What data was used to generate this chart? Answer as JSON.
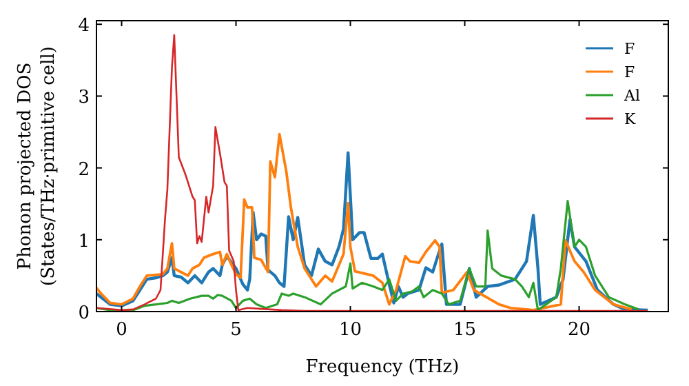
{
  "chart_data": {
    "type": "line",
    "xlabel": "Frequency (THz)",
    "ylabel": "Phonon projected DOS\n(States/THz·primitive cell)",
    "xlim": [
      -1.1,
      23.9
    ],
    "ylim": [
      0,
      4.05
    ],
    "xticks": [
      0,
      5,
      10,
      15,
      20
    ],
    "yticks": [
      0,
      1,
      2,
      3,
      4
    ],
    "legend": "top right",
    "grid": false,
    "series": [
      {
        "name": "F",
        "color": "#1f77b4",
        "x": [
          -1.1,
          -0.9,
          -0.5,
          0,
          0.5,
          0.8,
          1.1,
          1.5,
          1.8,
          2.0,
          2.2,
          2.3,
          2.6,
          2.9,
          3.2,
          3.5,
          3.8,
          4.0,
          4.3,
          4.4,
          4.6,
          5.0,
          5.3,
          5.5,
          5.6,
          5.75,
          5.9,
          6.1,
          6.3,
          6.4,
          6.7,
          6.9,
          7.1,
          7.3,
          7.5,
          7.7,
          8.0,
          8.3,
          8.6,
          8.9,
          9.2,
          9.5,
          9.7,
          9.9,
          10.1,
          10.4,
          10.6,
          10.9,
          11.2,
          11.4,
          11.7,
          11.9,
          12.1,
          12.3,
          12.5,
          13.0,
          13.3,
          13.6,
          13.8,
          14.0,
          14.2,
          14.8,
          15.2,
          15.5,
          16.0,
          16.5,
          17.2,
          17.7,
          18.0,
          18.2,
          18.3,
          19.0,
          19.3,
          19.6,
          19.8,
          20.3,
          20.8,
          21.5,
          22.0,
          23.0
        ],
        "values": [
          0.25,
          0.2,
          0.1,
          0.08,
          0.15,
          0.3,
          0.45,
          0.47,
          0.5,
          0.55,
          0.75,
          0.5,
          0.48,
          0.4,
          0.5,
          0.4,
          0.55,
          0.6,
          0.5,
          0.65,
          0.77,
          0.6,
          0.38,
          0.3,
          0.45,
          1.38,
          1.0,
          1.08,
          1.05,
          0.58,
          0.5,
          0.4,
          0.35,
          1.32,
          1.0,
          1.31,
          0.65,
          0.5,
          0.87,
          0.7,
          0.65,
          0.9,
          1.15,
          2.21,
          1.0,
          1.1,
          1.1,
          0.74,
          0.74,
          0.8,
          0.38,
          0.12,
          0.35,
          0.2,
          0.25,
          0.3,
          0.61,
          0.55,
          0.75,
          0.94,
          0.1,
          0.1,
          0.6,
          0.2,
          0.35,
          0.37,
          0.45,
          0.7,
          1.34,
          0.6,
          0.1,
          0.2,
          0.45,
          1.28,
          0.9,
          0.7,
          0.3,
          0.1,
          0.03,
          0.02
        ]
      },
      {
        "name": "F",
        "color": "#ff7f0e",
        "x": [
          -1.1,
          -0.9,
          -0.5,
          0,
          0.5,
          0.8,
          1.1,
          1.8,
          2.0,
          2.2,
          2.3,
          2.6,
          2.9,
          3.1,
          3.4,
          3.6,
          4.0,
          4.3,
          4.4,
          4.6,
          4.8,
          5.0,
          5.2,
          5.36,
          5.5,
          5.7,
          5.8,
          6.1,
          6.4,
          6.5,
          6.7,
          6.9,
          7.2,
          7.4,
          7.7,
          8.0,
          8.5,
          8.9,
          9.2,
          9.7,
          9.9,
          10.0,
          10.2,
          11.0,
          11.4,
          11.7,
          12.0,
          12.4,
          12.6,
          13.0,
          13.3,
          13.7,
          13.9,
          14.0,
          14.5,
          15.1,
          15.4,
          16.5,
          17.0,
          18.0,
          19.2,
          19.4,
          19.8,
          20.2,
          20.7,
          21.5,
          22.3
        ],
        "values": [
          0.33,
          0.25,
          0.12,
          0.1,
          0.18,
          0.35,
          0.5,
          0.52,
          0.6,
          0.95,
          0.6,
          0.55,
          0.5,
          0.6,
          0.65,
          0.75,
          0.8,
          0.83,
          0.65,
          0.8,
          0.65,
          0.52,
          0.47,
          1.56,
          1.45,
          1.45,
          0.75,
          0.72,
          0.55,
          2.09,
          1.87,
          2.47,
          1.95,
          1.45,
          0.9,
          0.6,
          0.35,
          0.5,
          0.42,
          0.8,
          1.51,
          0.9,
          0.56,
          0.5,
          0.4,
          0.1,
          0.3,
          0.77,
          0.7,
          0.68,
          0.83,
          0.99,
          0.9,
          0.26,
          0.3,
          0.55,
          0.3,
          0.1,
          0.05,
          0.02,
          0.1,
          0.99,
          0.7,
          0.55,
          0.3,
          0.1,
          0.03
        ]
      },
      {
        "name": "Al",
        "color": "#2ca02c",
        "x": [
          -1.1,
          -0.5,
          0,
          0.5,
          1.0,
          1.5,
          2.0,
          2.2,
          2.5,
          3.0,
          3.5,
          3.8,
          4.0,
          4.2,
          4.4,
          4.8,
          5.0,
          5.3,
          5.6,
          5.9,
          6.3,
          6.8,
          7.0,
          7.3,
          7.5,
          8.0,
          8.7,
          9.2,
          9.8,
          10.0,
          10.1,
          10.5,
          11.0,
          11.4,
          11.7,
          12.0,
          12.3,
          12.7,
          13.0,
          13.2,
          13.6,
          14.0,
          14.3,
          14.8,
          15.2,
          15.5,
          15.9,
          16.0,
          16.2,
          16.6,
          17.2,
          17.5,
          17.8,
          18.0,
          18.2,
          19.0,
          19.2,
          19.5,
          19.8,
          20.0,
          20.3,
          20.7,
          21.3,
          22.0,
          22.6
        ],
        "values": [
          0.05,
          0.02,
          0.01,
          0.02,
          0.08,
          0.1,
          0.12,
          0.15,
          0.12,
          0.18,
          0.22,
          0.22,
          0.18,
          0.23,
          0.22,
          0.15,
          0.05,
          0.15,
          0.18,
          0.1,
          0.05,
          0.1,
          0.25,
          0.22,
          0.25,
          0.2,
          0.1,
          0.25,
          0.35,
          0.67,
          0.32,
          0.4,
          0.35,
          0.3,
          0.45,
          0.15,
          0.25,
          0.28,
          0.35,
          0.2,
          0.3,
          0.25,
          0.1,
          0.15,
          0.6,
          0.35,
          0.35,
          1.13,
          0.6,
          0.5,
          0.45,
          0.35,
          0.2,
          0.4,
          0.02,
          0.2,
          0.6,
          1.54,
          0.9,
          1.0,
          0.9,
          0.5,
          0.2,
          0.1,
          0.03
        ]
      },
      {
        "name": "K",
        "color": "#d62728",
        "x": [
          -1.1,
          0,
          0.5,
          1.0,
          1.5,
          1.7,
          1.9,
          2.0,
          2.2,
          2.3,
          2.5,
          2.8,
          3.1,
          3.2,
          3.3,
          3.4,
          3.5,
          3.7,
          3.8,
          4.0,
          4.1,
          4.3,
          4.5,
          4.6,
          4.7,
          4.9,
          5.0,
          5.1,
          5.5,
          6.0,
          7.0,
          8.0,
          23.0
        ],
        "values": [
          0.05,
          0.02,
          0.03,
          0.1,
          0.18,
          0.3,
          1.3,
          1.7,
          3.4,
          3.85,
          2.15,
          1.9,
          1.6,
          1.55,
          0.95,
          1.05,
          0.97,
          1.6,
          1.38,
          1.75,
          2.57,
          2.2,
          1.8,
          1.75,
          0.85,
          0.7,
          0.3,
          0.02,
          0.05,
          0.04,
          0.02,
          0.01,
          0.01
        ]
      }
    ]
  }
}
